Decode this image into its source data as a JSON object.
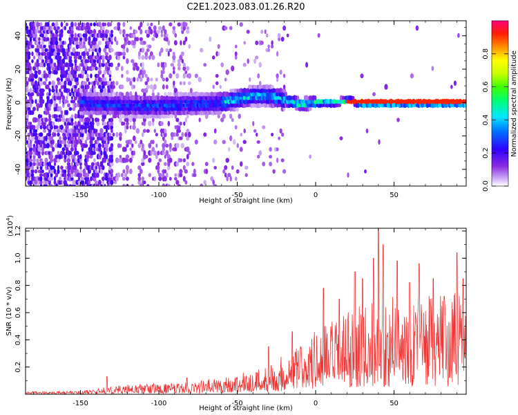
{
  "title": "C2E1.2023.083.01.26.R20",
  "chart_data": [
    {
      "type": "heatmap",
      "xlabel": "Height of straight line (km)",
      "ylabel": "Frequency (Hz)",
      "xlim": [
        -185,
        96
      ],
      "ylim": [
        -50,
        49
      ],
      "xticks": [
        -150,
        -100,
        -50,
        0,
        50
      ],
      "yticks": [
        -40,
        -20,
        0,
        20,
        40
      ],
      "ridge": {
        "x": [
          -185,
          -150,
          -120,
          -100,
          -80,
          -60,
          -50,
          -40,
          -30,
          -20,
          -10,
          0,
          10,
          20,
          30,
          50,
          70,
          96
        ],
        "y": [
          0,
          0,
          -2,
          -2,
          -1,
          0,
          2,
          4,
          4,
          2,
          -1,
          0,
          0,
          1,
          0,
          0,
          0,
          0
        ]
      },
      "colorbar": {
        "label": "Normalized spectral amplitude",
        "range": [
          0.0,
          1.0
        ],
        "ticks": [
          0.0,
          0.2,
          0.4,
          0.6,
          0.8
        ]
      }
    },
    {
      "type": "line",
      "xlabel": "Height of straight line (km)",
      "ylabel": "SNR (10 * v/v)",
      "exponent": "(x10",
      "exponent_sup": "4",
      "exponent_close": ")",
      "xlim": [
        -185,
        96
      ],
      "ylim": [
        0,
        1.22
      ],
      "xticks": [
        -150,
        -100,
        -50,
        0,
        50
      ],
      "yticks": [
        0.2,
        0.4,
        0.6,
        0.8,
        1.0,
        1.2
      ],
      "color": "#ee3333",
      "envelope": {
        "x": [
          -185,
          -150,
          -140,
          -130,
          -120,
          -110,
          -100,
          -90,
          -80,
          -70,
          -60,
          -50,
          -40,
          -30,
          -20,
          -10,
          0,
          10,
          20,
          30,
          40,
          50,
          60,
          70,
          80,
          90,
          96
        ],
        "y": [
          0.02,
          0.025,
          0.04,
          0.06,
          0.07,
          0.08,
          0.08,
          0.08,
          0.09,
          0.11,
          0.13,
          0.15,
          0.18,
          0.22,
          0.3,
          0.38,
          0.48,
          0.55,
          0.6,
          0.66,
          0.7,
          0.72,
          0.72,
          0.75,
          0.73,
          0.75,
          0.7
        ]
      },
      "peaks": [
        {
          "x": -133,
          "y": 0.13
        },
        {
          "x": -82,
          "y": 0.12
        },
        {
          "x": -30,
          "y": 0.35
        },
        {
          "x": -15,
          "y": 0.46
        },
        {
          "x": 5,
          "y": 0.78
        },
        {
          "x": 15,
          "y": 0.7
        },
        {
          "x": 25,
          "y": 0.9
        },
        {
          "x": 30,
          "y": 0.85
        },
        {
          "x": 37,
          "y": 1.0
        },
        {
          "x": 40,
          "y": 1.22
        },
        {
          "x": 43,
          "y": 1.1
        },
        {
          "x": 52,
          "y": 0.98
        },
        {
          "x": 60,
          "y": 0.82
        },
        {
          "x": 66,
          "y": 0.96
        },
        {
          "x": 75,
          "y": 0.85
        },
        {
          "x": 82,
          "y": 0.72
        },
        {
          "x": 90,
          "y": 1.04
        },
        {
          "x": 94,
          "y": 0.85
        }
      ]
    }
  ]
}
